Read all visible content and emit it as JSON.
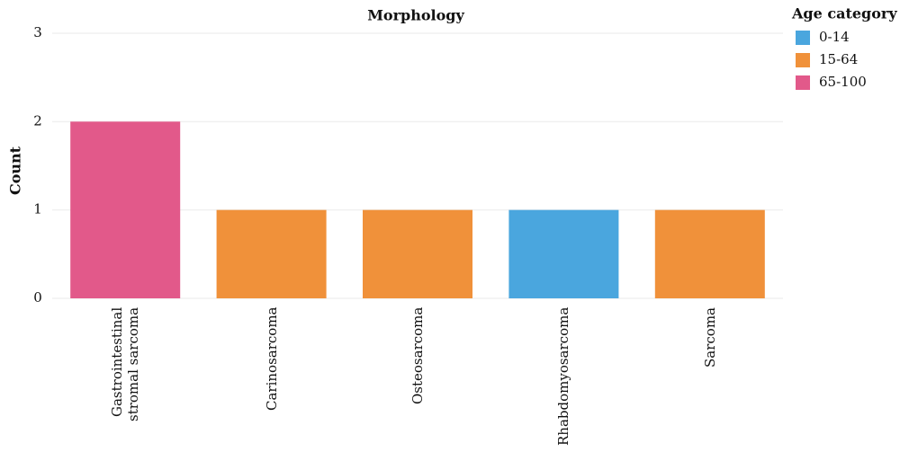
{
  "chart_data": {
    "type": "bar",
    "stacked": true,
    "title": "Morphology",
    "y_label": "Count",
    "categories": [
      "Gastrointestinal stromal sarcoma",
      "Carinosarcoma",
      "Osteosarcoma",
      "Rhabdomyosarcoma",
      "Sarcoma"
    ],
    "legend_title": "Age category",
    "legend_position": "top-right",
    "series": [
      {
        "name": "0-14",
        "color": "#4aa6de",
        "values": [
          null,
          null,
          null,
          1,
          null
        ]
      },
      {
        "name": "15-64",
        "color": "#f0913a",
        "values": [
          null,
          1,
          1,
          null,
          1
        ]
      },
      {
        "name": "65-100",
        "color": "#e2598a",
        "values": [
          2,
          null,
          null,
          null,
          null
        ]
      }
    ],
    "ylim": [
      0,
      3
    ],
    "yticks": [
      0,
      1,
      2,
      3
    ],
    "grid": true
  }
}
